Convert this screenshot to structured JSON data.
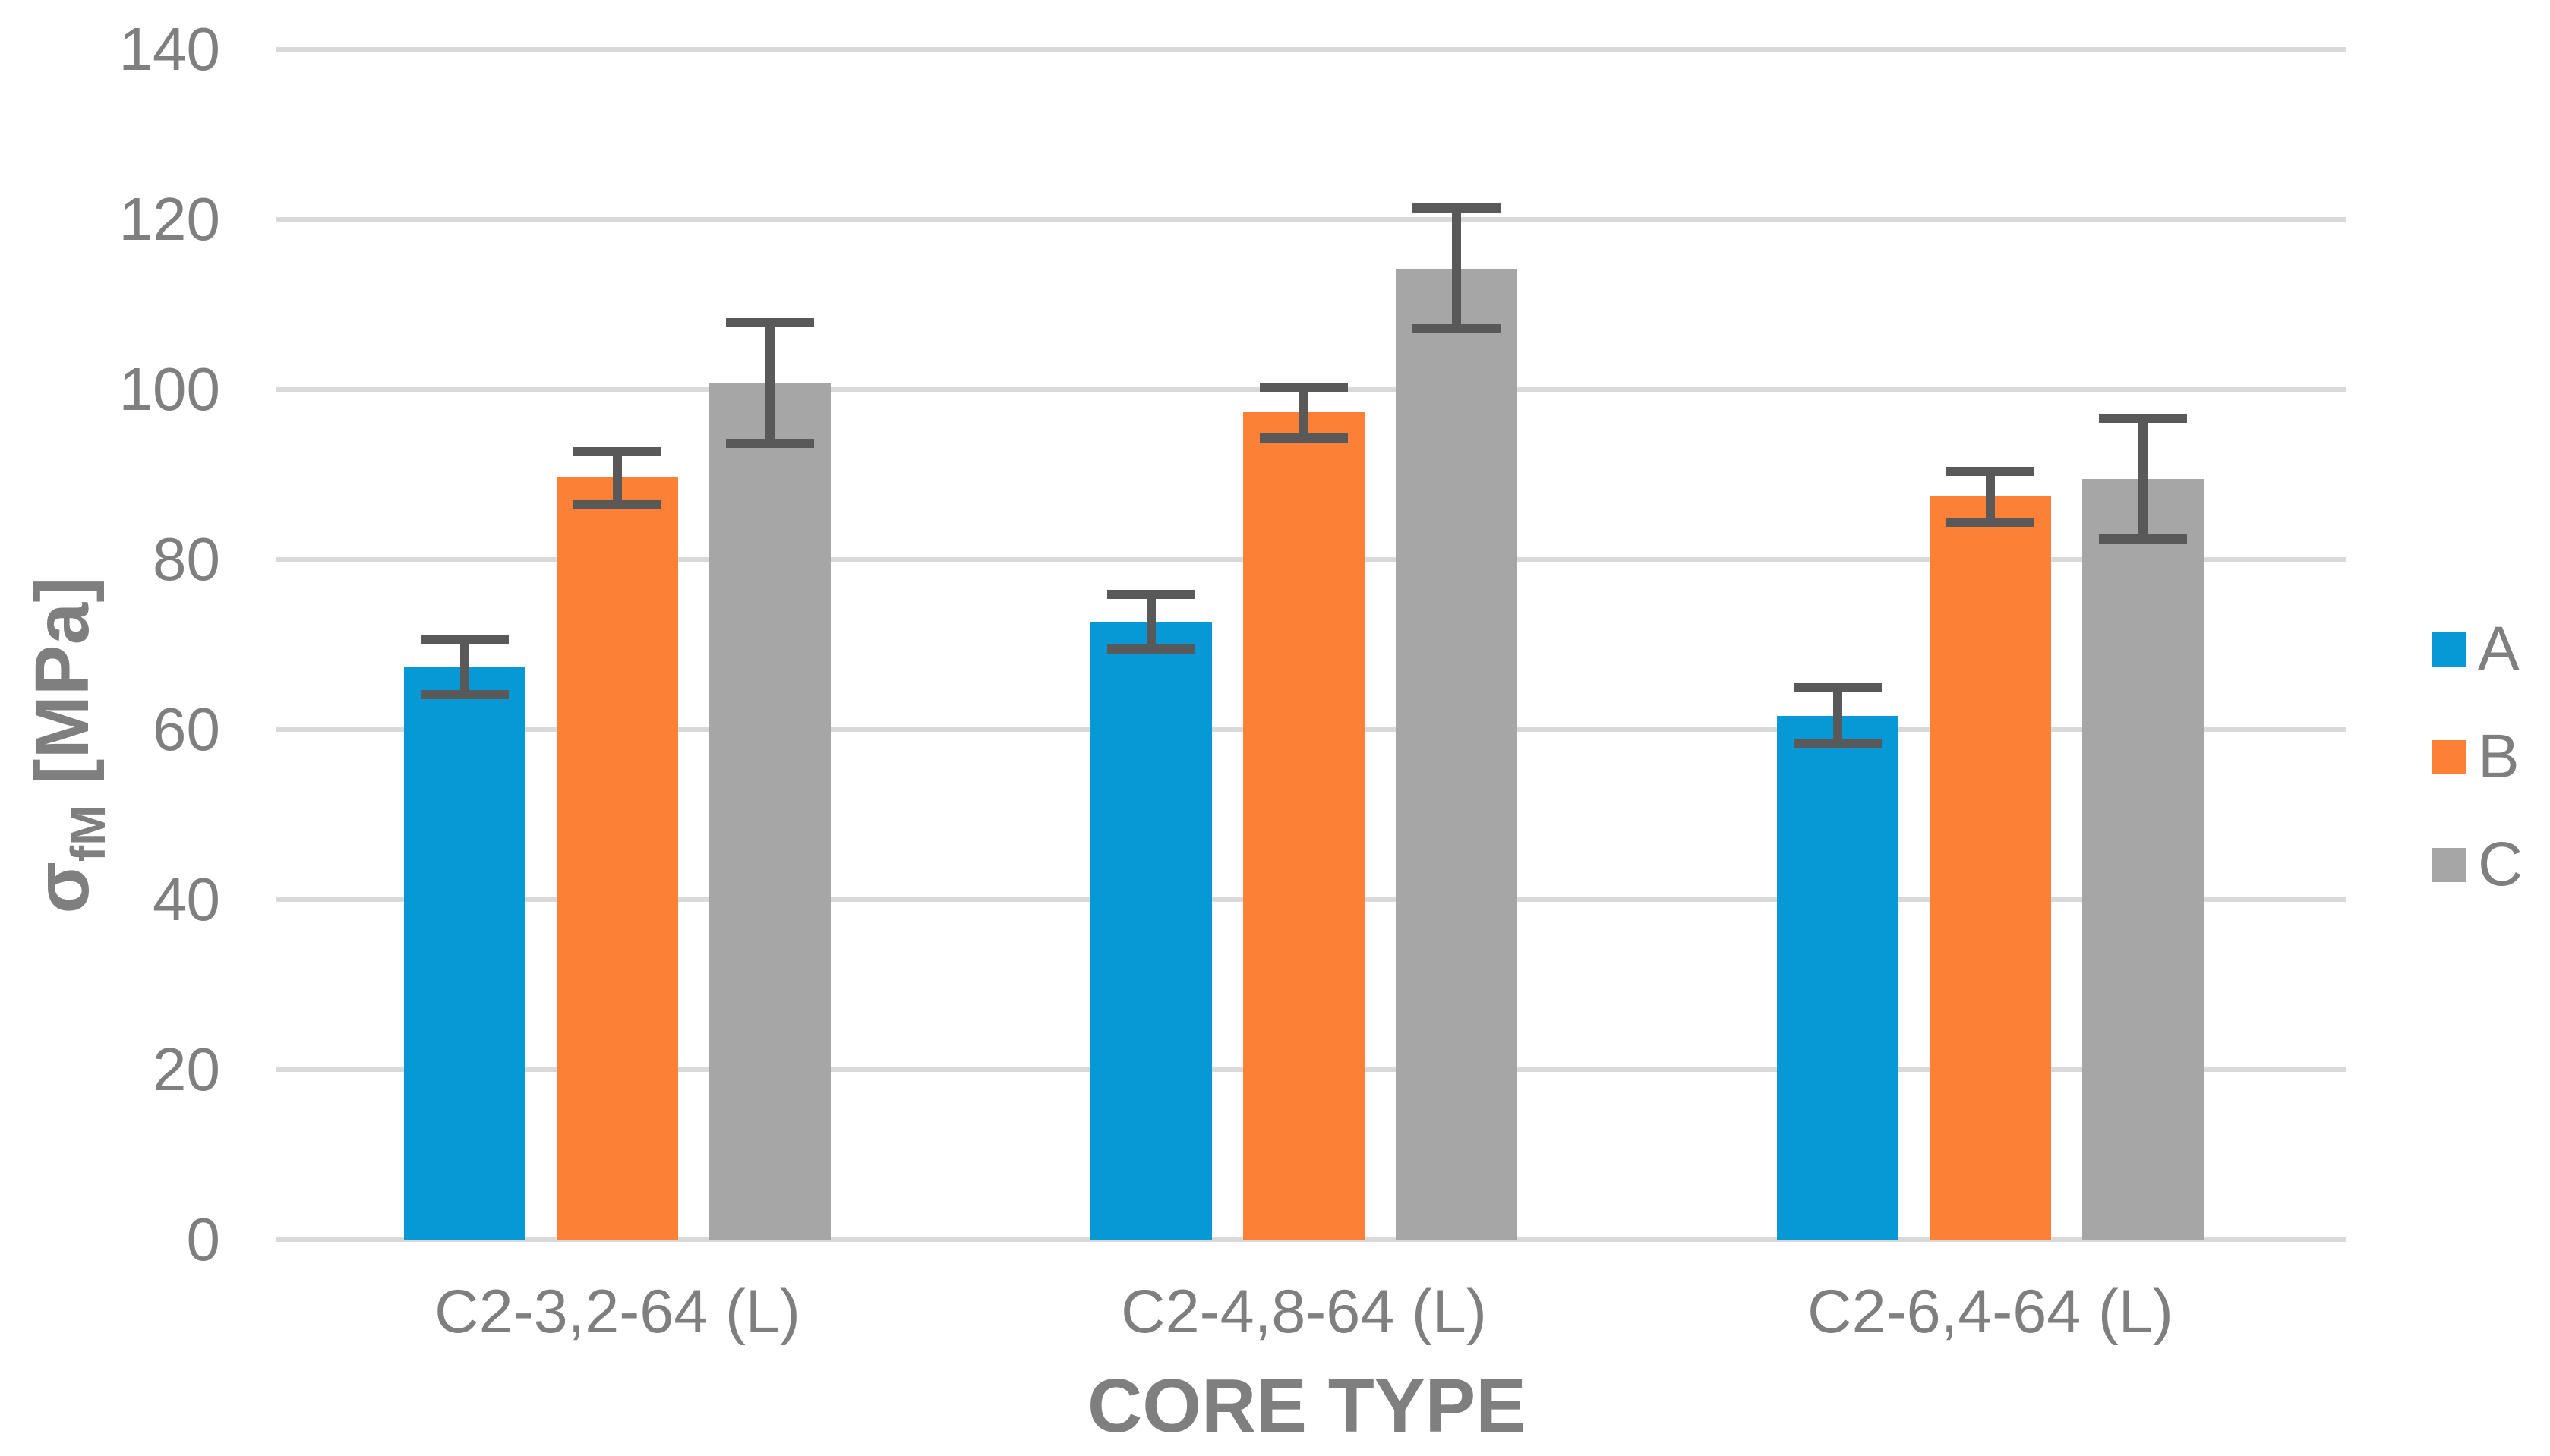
{
  "chart_data": {
    "type": "bar",
    "title": "",
    "xlabel": "CORE TYPE",
    "ylabel": {
      "sigma": "σ",
      "subscript": "fM",
      "unit": " [MPa]"
    },
    "categories": [
      "C2-3,2-64 (L)",
      "C2-4,8-64 (L)",
      "C2-6,4-64 (L)"
    ],
    "series": [
      {
        "name": "A",
        "color": "#0699d6",
        "values": [
          67.3,
          72.7,
          61.6
        ],
        "errors": [
          3.2,
          3.2,
          3.3
        ]
      },
      {
        "name": "B",
        "color": "#fc8137",
        "values": [
          89.6,
          97.3,
          87.4
        ],
        "errors": [
          3.1,
          3.0,
          3.0
        ]
      },
      {
        "name": "C",
        "color": "#a6a6a6",
        "values": [
          100.8,
          114.2,
          89.5
        ],
        "errors": [
          7.1,
          7.1,
          7.1
        ]
      }
    ],
    "yticks": [
      "0",
      "20",
      "40",
      "60",
      "80",
      "100",
      "120",
      "140"
    ],
    "ylim": [
      0,
      140
    ],
    "grid": true,
    "legend_position": "right",
    "gridline_color": "#d9d9d9",
    "error_bar_color": "#595959",
    "text_color": "#7f7f7f"
  }
}
